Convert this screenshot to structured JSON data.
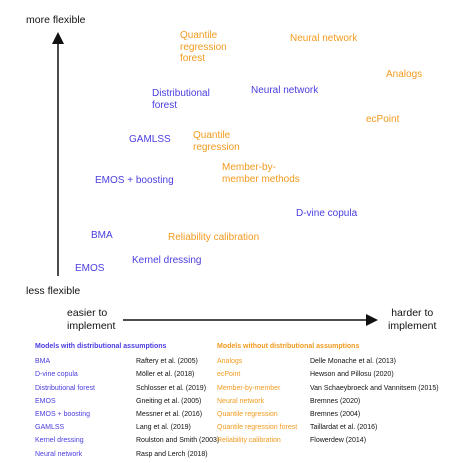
{
  "axes": {
    "y_top": "more flexible",
    "y_bottom": "less flexible",
    "x_left_line1": "easier to",
    "x_left_line2": "implement",
    "x_right_line1": "harder to",
    "x_right_line2": "implement"
  },
  "colors": {
    "distributional": "#4a3de0",
    "non_distributional": "#f29a1e"
  },
  "points": {
    "qrf_1": "Quantile",
    "qrf_2": "regression",
    "qrf_3": "forest",
    "nn_orange": "Neural network",
    "analogs": "Analogs",
    "dist_forest_1": "Distributional",
    "dist_forest_2": "forest",
    "nn_blue": "Neural network",
    "ecpoint": "ecPoint",
    "gamlss": "GAMLSS",
    "qr_1": "Quantile",
    "qr_2": "regression",
    "mbm_1": "Member-by-",
    "mbm_2": "member methods",
    "emos_boost": "EMOS + boosting",
    "dvine": "D-vine copula",
    "bma": "BMA",
    "rel_cal": "Reliability calibration",
    "kernel": "Kernel dressing",
    "emos": "EMOS"
  },
  "legend_left": {
    "title": "Models with distributional assumptions",
    "rows": [
      {
        "name": "BMA",
        "ref": "Raftery et al. (2005)"
      },
      {
        "name": "D-vine copula",
        "ref": "Möller et al. (2018)"
      },
      {
        "name": "Distributional forest",
        "ref": "Schlosser et al. (2019)"
      },
      {
        "name": "EMOS",
        "ref": "Gneiting et al. (2005)"
      },
      {
        "name": "EMOS + boosting",
        "ref": "Messner et al. (2016)"
      },
      {
        "name": "GAMLSS",
        "ref": "Lang et al. (2019)"
      },
      {
        "name": "Kernel dressing",
        "ref": "Roulston and Smith (2003)"
      },
      {
        "name": "Neural network",
        "ref": "Rasp and Lerch (2018)"
      }
    ]
  },
  "legend_right": {
    "title": "Models without distributional assumptions",
    "rows": [
      {
        "name": "Analogs",
        "ref": "Delle Monache et al. (2013)"
      },
      {
        "name": "ecPoint",
        "ref": "Hewson and Pillosu (2020)"
      },
      {
        "name": "Member-by-member",
        "ref": "Van Schaeybroeck and Vannitsem (2015)"
      },
      {
        "name": "Neural network",
        "ref": "Bremnes (2020)"
      },
      {
        "name": "Quantile regression",
        "ref": "Bremnes (2004)"
      },
      {
        "name": "Quantile regression forest",
        "ref": "Taillardat et al. (2016)"
      },
      {
        "name": "Reliability calibration",
        "ref": "Flowerdew (2014)"
      }
    ]
  }
}
